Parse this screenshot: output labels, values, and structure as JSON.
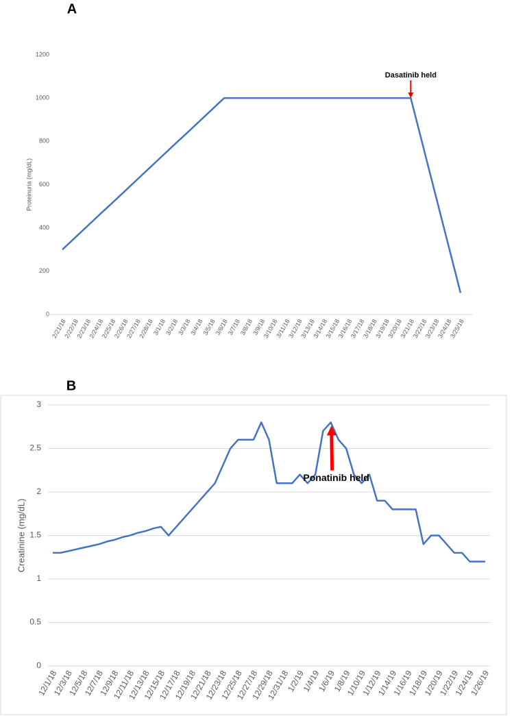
{
  "chart_data": [
    {
      "type": "line",
      "panel_label": "A",
      "y_label": "Proteinuria (mg/dL)",
      "annotation": "Dasatinib held",
      "color": "#4472c4",
      "grid": false,
      "categories": [
        "2/21/18",
        "2/22/18",
        "2/23/18",
        "2/24/18",
        "2/25/18",
        "2/26/18",
        "2/27/18",
        "2/28/18",
        "3/1/18",
        "3/2/18",
        "3/3/18",
        "3/4/18",
        "3/5/18",
        "3/6/18",
        "3/7/18",
        "3/8/18",
        "3/9/18",
        "3/10/18",
        "3/11/18",
        "3/12/18",
        "3/13/18",
        "3/14/18",
        "3/15/18",
        "3/16/18",
        "3/17/18",
        "3/18/18",
        "3/19/18",
        "3/20/18",
        "3/21/18",
        "3/22/18",
        "3/23/18",
        "3/24/18",
        "3/25/18"
      ],
      "values": [
        300,
        354,
        408,
        462,
        515,
        569,
        623,
        677,
        731,
        785,
        838,
        892,
        946,
        1000,
        1000,
        1000,
        1000,
        1000,
        1000,
        1000,
        1000,
        1000,
        1000,
        1000,
        1000,
        1000,
        1000,
        1000,
        1000,
        775,
        550,
        325,
        100
      ],
      "ylim": [
        0,
        1200
      ],
      "yticks": [
        0,
        200,
        400,
        600,
        800,
        1000,
        1200
      ]
    },
    {
      "type": "line",
      "panel_label": "B",
      "y_label": "Creatinine  (mg/dL)",
      "annotation": "Ponatinib held",
      "color": "#4472c4",
      "grid": true,
      "categories": [
        "12/1/18",
        null,
        "12/3/18",
        null,
        "12/5/18",
        null,
        "12/7/18",
        null,
        "12/9/18",
        null,
        "12/11/18",
        null,
        "12/13/18",
        null,
        "12/15/18",
        null,
        "12/17/18",
        null,
        "12/19/18",
        null,
        "12/21/18",
        null,
        "12/23/18",
        null,
        "12/25/18",
        null,
        "12/27/18",
        null,
        "12/29/18",
        null,
        "12/31/18",
        null,
        "1/2/19",
        null,
        "1/4/19",
        null,
        "1/6/19",
        null,
        "1/8/19",
        null,
        "1/10/19",
        null,
        "1/12/19",
        null,
        "1/14/19",
        null,
        "1/16/19",
        null,
        "1/18/19",
        null,
        "1/20/19",
        null,
        "1/22/19",
        null,
        "1/24/19",
        null,
        "1/26/19"
      ],
      "values": [
        1.3,
        1.3,
        1.32,
        1.34,
        1.36,
        1.38,
        1.4,
        1.43,
        1.45,
        1.48,
        1.5,
        1.53,
        1.55,
        1.58,
        1.6,
        1.5,
        1.6,
        1.7,
        1.8,
        1.9,
        2.0,
        2.1,
        2.3,
        2.5,
        2.6,
        2.6,
        2.6,
        2.8,
        2.6,
        2.1,
        2.1,
        2.1,
        2.2,
        2.1,
        2.2,
        2.7,
        2.8,
        2.6,
        2.5,
        2.2,
        2.1,
        2.2,
        1.9,
        1.9,
        1.8,
        1.8,
        1.8,
        1.8,
        1.4,
        1.5,
        1.5,
        1.4,
        1.3,
        1.3,
        1.2,
        1.2,
        1.2
      ],
      "ylim": [
        0,
        3
      ],
      "yticks": [
        0,
        0.5,
        1,
        1.5,
        2,
        2.5,
        3
      ]
    }
  ]
}
